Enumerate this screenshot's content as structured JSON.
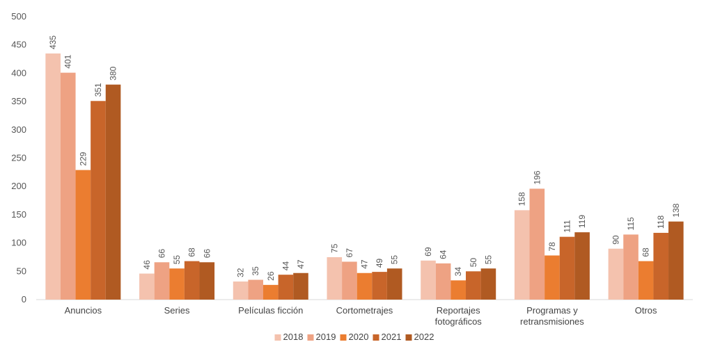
{
  "chart_data": {
    "type": "bar",
    "categories": [
      [
        "Anuncios"
      ],
      [
        "Series"
      ],
      [
        "Películas ficción"
      ],
      [
        "Cortometrajes"
      ],
      [
        "Reportajes",
        "fotográficos"
      ],
      [
        "Programas y",
        "retransmisiones"
      ],
      [
        "Otros"
      ]
    ],
    "series": [
      {
        "name": "2018",
        "color": "#F4C2AE",
        "values": [
          435,
          46,
          32,
          75,
          69,
          158,
          90
        ]
      },
      {
        "name": "2019",
        "color": "#EEA283",
        "values": [
          401,
          66,
          35,
          67,
          64,
          196,
          115
        ]
      },
      {
        "name": "2020",
        "color": "#EB7D30",
        "values": [
          229,
          55,
          26,
          47,
          34,
          78,
          68
        ]
      },
      {
        "name": "2021",
        "color": "#C8652A",
        "values": [
          351,
          68,
          44,
          49,
          50,
          111,
          118
        ]
      },
      {
        "name": "2022",
        "color": "#B05A22",
        "values": [
          380,
          66,
          47,
          55,
          55,
          119,
          138
        ]
      }
    ],
    "yticks": [
      0,
      50,
      100,
      150,
      200,
      250,
      300,
      350,
      400,
      450,
      500
    ],
    "ylim": [
      0,
      500
    ],
    "grid": false,
    "legend_position": "bottom-center",
    "data_labels": true
  }
}
